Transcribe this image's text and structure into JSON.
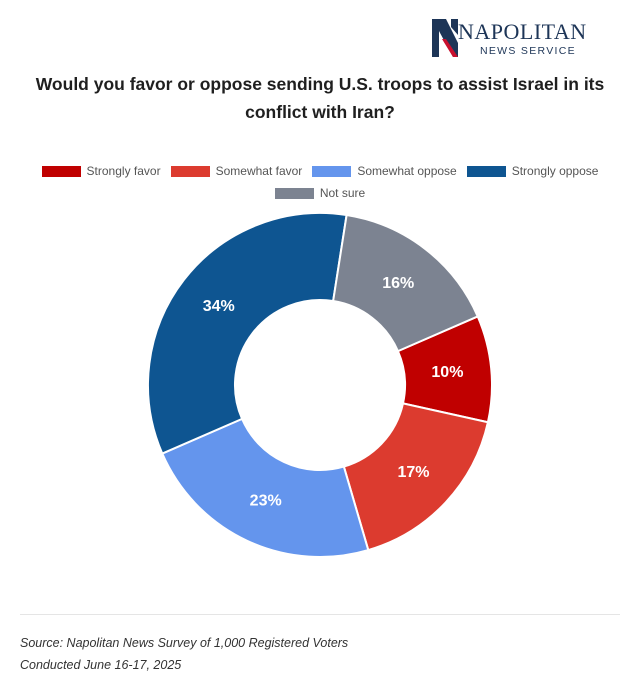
{
  "logo": {
    "name": "NAPOLITAN",
    "sub": "NEWS SERVICE",
    "mark_color": "#1d3557",
    "accent_color": "#c8102e"
  },
  "chart_data": {
    "type": "pie",
    "donut": true,
    "title": "Would you favor or oppose sending U.S. troops to assist Israel in its conflict with Iran?",
    "categories": [
      "Strongly favor",
      "Somewhat favor",
      "Somewhat oppose",
      "Strongly oppose",
      "Not sure"
    ],
    "values": [
      10,
      17,
      23,
      34,
      16
    ],
    "labels": [
      "10%",
      "17%",
      "23%",
      "34%",
      "16%"
    ],
    "colors": [
      "#c00000",
      "#dc3b2f",
      "#6495ed",
      "#0e5591",
      "#7c8391"
    ],
    "legend_position": "top"
  },
  "footer": {
    "source": "Source: Napolitan News Survey of 1,000 Registered Voters",
    "conducted": "Conducted June 16-17, 2025"
  }
}
